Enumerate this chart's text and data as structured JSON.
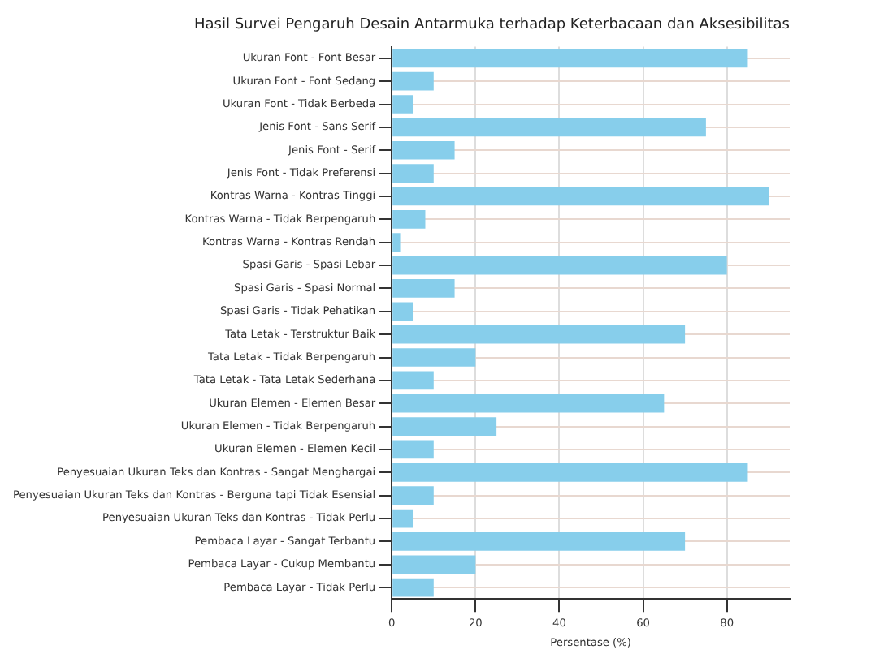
{
  "chart_data": {
    "type": "bar",
    "orientation": "horizontal",
    "title": "Hasil Survei Pengaruh Desain Antarmuka terhadap Keterbacaan dan Aksesibilitas",
    "xlabel": "Persentase (%)",
    "categories": [
      "Ukuran Font - Font Besar",
      "Ukuran Font - Font Sedang",
      "Ukuran Font - Tidak Berbeda",
      "Jenis Font - Sans Serif",
      "Jenis Font - Serif",
      "Jenis Font - Tidak Preferensi",
      "Kontras Warna - Kontras Tinggi",
      "Kontras Warna - Tidak Berpengaruh",
      "Kontras Warna - Kontras Rendah",
      "Spasi Garis - Spasi Lebar",
      "Spasi Garis - Spasi Normal",
      "Spasi Garis - Tidak Pehatikan",
      "Tata Letak - Terstruktur Baik",
      "Tata Letak - Tidak Berpengaruh",
      "Tata Letak - Tata Letak Sederhana",
      "Ukuran Elemen - Elemen Besar",
      "Ukuran Elemen - Tidak Berpengaruh",
      "Ukuran Elemen - Elemen Kecil",
      "Penyesuaian Ukuran Teks dan Kontras - Sangat Menghargai",
      "Penyesuaian Ukuran Teks dan Kontras - Berguna tapi Tidak Esensial",
      "Penyesuaian Ukuran Teks dan Kontras - Tidak Perlu",
      "Pembaca Layar - Sangat Terbantu",
      "Pembaca Layar - Cukup Membantu",
      "Pembaca Layar - Tidak Perlu"
    ],
    "values": [
      85,
      10,
      5,
      75,
      15,
      10,
      90,
      8,
      2,
      80,
      15,
      5,
      70,
      20,
      10,
      65,
      25,
      10,
      85,
      10,
      5,
      70,
      20,
      10
    ],
    "color": "#87ceeb",
    "xlim": [
      0,
      95
    ],
    "xticks": [
      0,
      20,
      40,
      60,
      80
    ],
    "grid": true
  }
}
